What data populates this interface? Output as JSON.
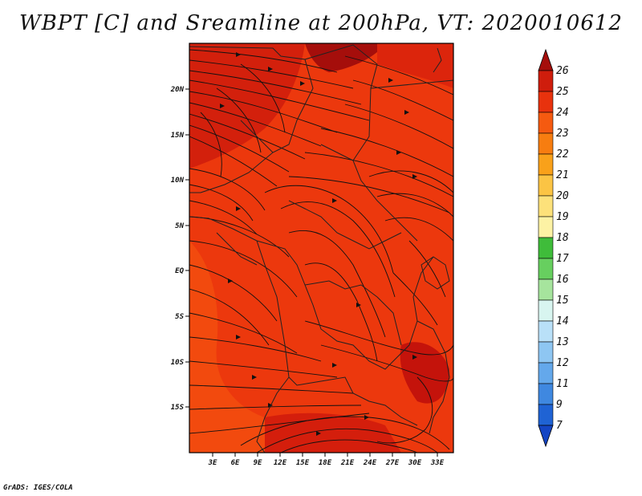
{
  "title": "WBPT [C] and Sreamline at 200hPa, VT: 2020010612",
  "credit": "GrADS: IGES/COLA",
  "map": {
    "lon_range": [
      0,
      35
    ],
    "lat_range": [
      -20,
      25
    ],
    "lat_ticks": [
      "20N",
      "15N",
      "10N",
      "5N",
      "EQ",
      "5S",
      "10S",
      "15S"
    ],
    "lon_ticks": [
      "3E",
      "6E",
      "9E",
      "12E",
      "15E",
      "18E",
      "21E",
      "24E",
      "27E",
      "30E",
      "33E"
    ],
    "fill_colors": {
      "level_23": "#f24a0e",
      "level_24": "#e32a0c",
      "level_25": "#c4130b",
      "level_26": "#a50e0b"
    }
  },
  "colorbar": {
    "levels": [
      "26",
      "25",
      "24",
      "23",
      "22",
      "21",
      "20",
      "19",
      "18",
      "17",
      "16",
      "15",
      "14",
      "13",
      "12",
      "11",
      "9",
      "7"
    ],
    "colors": [
      "#a50e0b",
      "#cf1d0c",
      "#e8320d",
      "#f55a10",
      "#f77d10",
      "#f9a11a",
      "#fbc444",
      "#fde17a",
      "#fdf2a4",
      "#3fbc3a",
      "#67cf5f",
      "#a6e49d",
      "#d8f5f0",
      "#b9e0f8",
      "#8ec6f2",
      "#64a8eb",
      "#3f88e0",
      "#1f63d4",
      "#1445c4"
    ]
  }
}
